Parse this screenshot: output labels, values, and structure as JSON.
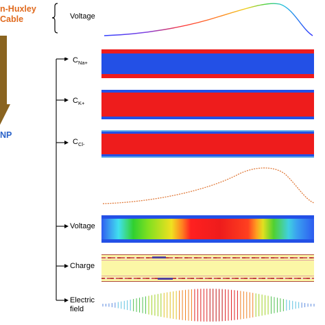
{
  "left": {
    "title_line1": "n-Huxley",
    "title_line2": "Cable",
    "bottom_label": "NP"
  },
  "panels": {
    "voltage_top": "Voltage",
    "c_na_main": "C",
    "c_na_sub": "Na+",
    "c_k_main": "C",
    "c_k_sub": "K+",
    "c_cl_main": "C",
    "c_cl_sub": "Cl-",
    "voltage": "Voltage",
    "charge": "Charge",
    "electric_line1": "Electric",
    "electric_line2": "field"
  },
  "colors": {
    "orange_title": "#e06a1e",
    "blue_title": "#2b63c9",
    "arrow": "#8a6420",
    "bar_red": "#ee1c1c",
    "bar_blue": "#2350e6",
    "charge_yellow": "#fbf7a6"
  }
}
